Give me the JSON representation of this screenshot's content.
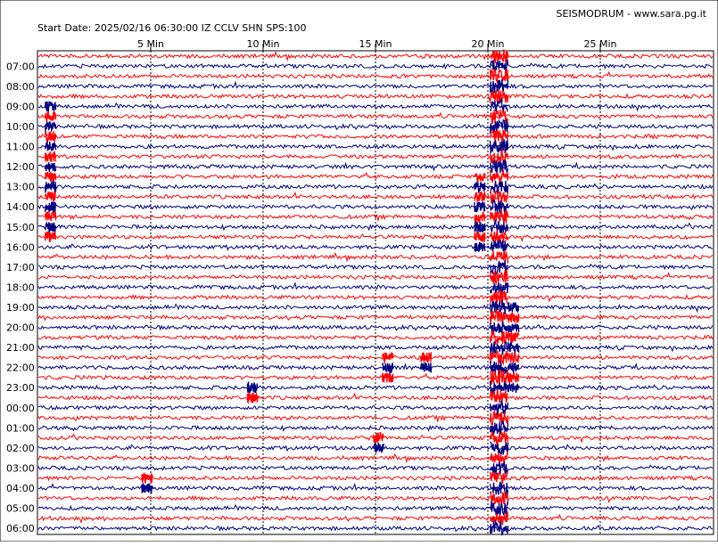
{
  "header": {
    "brand": "SEISMODRUM - www.sara.pg.it",
    "start_info": "Start Date: 2025/02/16 06:30:00 IZ CCLV SHN SPS:100"
  },
  "colors": {
    "background": "#ffffff",
    "trace_red": "#ff0000",
    "trace_blue": "#000080",
    "grid": "#000000"
  },
  "chart_data": {
    "type": "seismogram",
    "title": "",
    "station": "IZ CCLV SHN",
    "sps": 100,
    "start": "2025/02/16 06:30:00",
    "minutes_per_line": 30,
    "lines": 48,
    "color_cycle": [
      "red",
      "blue"
    ],
    "x_ticks": [
      "5 Min",
      "10 Min",
      "15 Min",
      "20 Min",
      "25 Min"
    ],
    "x_tick_minutes": [
      5,
      10,
      15,
      20,
      25
    ],
    "y_labels": [
      "07:00",
      "08:00",
      "09:00",
      "10:00",
      "11:00",
      "12:00",
      "13:00",
      "14:00",
      "15:00",
      "16:00",
      "17:00",
      "18:00",
      "19:00",
      "20:00",
      "21:00",
      "22:00",
      "23:00",
      "00:00",
      "01:00",
      "02:00",
      "03:00",
      "04:00",
      "05:00",
      "06:00"
    ],
    "grid": "dashed-vertical",
    "events": [
      {
        "label": "large local event",
        "start_line": 5,
        "end_line": 18,
        "minute": 0.3
      },
      {
        "label": "event",
        "start_line": 12,
        "end_line": 19,
        "minute": 19.4
      },
      {
        "label": "major event",
        "start_line": 0,
        "end_line": 47,
        "minute": 20.1
      },
      {
        "label": "event",
        "start_line": 25,
        "end_line": 33,
        "minute": 20.9
      },
      {
        "label": "event",
        "start_line": 30,
        "end_line": 32,
        "minute": 15.3
      },
      {
        "label": "event",
        "start_line": 30,
        "end_line": 31,
        "minute": 17.0
      },
      {
        "label": "event",
        "start_line": 33,
        "end_line": 34,
        "minute": 9.3
      },
      {
        "label": "event",
        "start_line": 38,
        "end_line": 39,
        "minute": 14.9
      },
      {
        "label": "event",
        "start_line": 42,
        "end_line": 43,
        "minute": 4.6
      }
    ]
  }
}
